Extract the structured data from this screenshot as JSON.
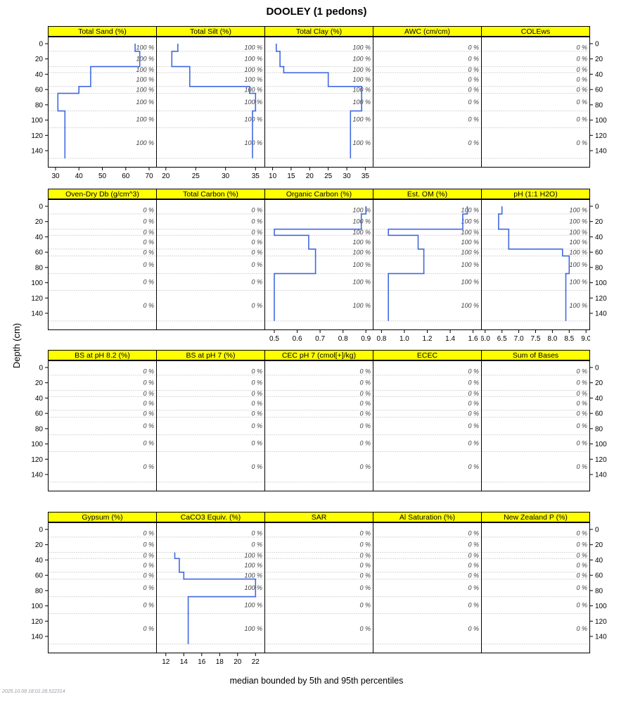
{
  "title": "DOOLEY (1 pedons)",
  "y_axis_label": "Depth (cm)",
  "footer": "median bounded by 5th and 95th percentiles",
  "timestamp": "2025.10.08 18:01:28.522314",
  "colors": {
    "strip_bg": "#ffff00",
    "strip_border": "#000000",
    "line": "#4169e1",
    "pct_text": "#404040",
    "grid": "#b0b0b0"
  },
  "chart_data": {
    "type": "line",
    "description": "Soil property depth-profile step lines for pedon DOOLEY; 4 rows x 5 property panels; blue line is median value by depth; italic labels give percent of pedons contributing data per horizon",
    "depth_axis_label": "Depth (cm)",
    "depth_ticks": [
      0,
      20,
      40,
      60,
      80,
      100,
      120,
      140
    ],
    "depth_range": [
      0,
      150
    ],
    "horizon_boundaries_cm": [
      0,
      10,
      30,
      38,
      56,
      65,
      88,
      110,
      150
    ],
    "rows": [
      {
        "panels": [
          {
            "title": "Total Sand (%)",
            "xlim": [
              27,
              73
            ],
            "tick_values": [
              30,
              40,
              50,
              60,
              70
            ],
            "tick_labels": [
              "30",
              "40",
              "50",
              "60",
              "70"
            ],
            "values": [
              64,
              66,
              45,
              45,
              40,
              31,
              34,
              34
            ],
            "pct": [
              "100 %",
              "100 %",
              "100 %",
              "100 %",
              "100 %",
              "100 %",
              "100 %",
              "100 %"
            ]
          },
          {
            "title": "Total Silt (%)",
            "xlim": [
              18.5,
              36.5
            ],
            "tick_values": [
              20,
              25,
              30,
              35
            ],
            "tick_labels": [
              "20",
              "25",
              "30",
              "35"
            ],
            "values": [
              22,
              21,
              24,
              24,
              34,
              35,
              34.5,
              34.5
            ],
            "pct": [
              "100 %",
              "100 %",
              "100 %",
              "100 %",
              "100 %",
              "100 %",
              "100 %",
              "100 %"
            ]
          },
          {
            "title": "Total Clay (%)",
            "xlim": [
              8,
              37
            ],
            "tick_values": [
              10,
              15,
              20,
              25,
              30,
              35
            ],
            "tick_labels": [
              "10",
              "15",
              "20",
              "25",
              "30",
              "35"
            ],
            "values": [
              11,
              12,
              13,
              25,
              34,
              34,
              31,
              31
            ],
            "pct": [
              "100 %",
              "100 %",
              "100 %",
              "100 %",
              "100 %",
              "100 %",
              "100 %",
              "100 %"
            ]
          },
          {
            "title": "AWC (cm/cm)",
            "xlim": null,
            "tick_values": [],
            "tick_labels": [],
            "values": null,
            "pct": [
              "0 %",
              "0 %",
              "0 %",
              "0 %",
              "0 %",
              "0 %",
              "0 %",
              "0 %"
            ]
          },
          {
            "title": "COLEws",
            "xlim": null,
            "tick_values": [],
            "tick_labels": [],
            "values": null,
            "pct": [
              "0 %",
              "0 %",
              "0 %",
              "0 %",
              "0 %",
              "0 %",
              "0 %",
              "0 %"
            ]
          }
        ]
      },
      {
        "panels": [
          {
            "title": "Oven-Dry Db (g/cm^3)",
            "xlim": null,
            "tick_values": [],
            "tick_labels": [],
            "values": null,
            "pct": [
              "0 %",
              "0 %",
              "0 %",
              "0 %",
              "0 %",
              "0 %",
              "0 %",
              "0 %"
            ]
          },
          {
            "title": "Total Carbon (%)",
            "xlim": null,
            "tick_values": [],
            "tick_labels": [],
            "values": null,
            "pct": [
              "0 %",
              "0 %",
              "0 %",
              "0 %",
              "0 %",
              "0 %",
              "0 %",
              "0 %"
            ]
          },
          {
            "title": "Organic Carbon (%)",
            "xlim": [
              0.46,
              0.93
            ],
            "tick_values": [
              0.5,
              0.6,
              0.7,
              0.8,
              0.9
            ],
            "tick_labels": [
              "0.5",
              "0.6",
              "0.7",
              "0.8",
              "0.9"
            ],
            "values": [
              0.9,
              0.88,
              0.5,
              0.65,
              0.68,
              0.68,
              0.5,
              0.5
            ],
            "pct": [
              "100 %",
              "100 %",
              "100 %",
              "100 %",
              "100 %",
              "100 %",
              "100 %",
              "100 %"
            ]
          },
          {
            "title": "Est. OM (%)",
            "xlim": [
              0.73,
              1.67
            ],
            "tick_values": [
              0.8,
              1.0,
              1.2,
              1.4,
              1.6
            ],
            "tick_labels": [
              "0.8",
              "1.0",
              "1.2",
              "1.4",
              "1.6"
            ],
            "values": [
              1.55,
              1.51,
              0.86,
              1.12,
              1.17,
              1.17,
              0.86,
              0.86
            ],
            "pct": [
              "100 %",
              "100 %",
              "100 %",
              "100 %",
              "100 %",
              "100 %",
              "100 %",
              "100 %"
            ]
          },
          {
            "title": "pH (1:1 H2O)",
            "xlim": [
              5.9,
              9.1
            ],
            "tick_values": [
              6.0,
              6.5,
              7.0,
              7.5,
              8.0,
              8.5,
              9.0
            ],
            "tick_labels": [
              "6.0",
              "6.5",
              "7.0",
              "7.5",
              "8.0",
              "8.5",
              "9.0"
            ],
            "values": [
              6.5,
              6.4,
              6.7,
              6.7,
              8.3,
              8.5,
              8.4,
              8.4
            ],
            "pct": [
              "100 %",
              "100 %",
              "100 %",
              "100 %",
              "100 %",
              "100 %",
              "100 %",
              "100 %"
            ]
          }
        ]
      },
      {
        "panels": [
          {
            "title": "BS at pH 8.2 (%)",
            "xlim": null,
            "tick_values": [],
            "tick_labels": [],
            "values": null,
            "pct": [
              "0 %",
              "0 %",
              "0 %",
              "0 %",
              "0 %",
              "0 %",
              "0 %",
              "0 %"
            ]
          },
          {
            "title": "BS at pH 7 (%)",
            "xlim": null,
            "tick_values": [],
            "tick_labels": [],
            "values": null,
            "pct": [
              "0 %",
              "0 %",
              "0 %",
              "0 %",
              "0 %",
              "0 %",
              "0 %",
              "0 %"
            ]
          },
          {
            "title": "CEC pH 7 (cmol[+]/kg)",
            "xlim": null,
            "tick_values": [],
            "tick_labels": [],
            "values": null,
            "pct": [
              "0 %",
              "0 %",
              "0 %",
              "0 %",
              "0 %",
              "0 %",
              "0 %",
              "0 %"
            ]
          },
          {
            "title": "ECEC",
            "xlim": null,
            "tick_values": [],
            "tick_labels": [],
            "values": null,
            "pct": [
              "0 %",
              "0 %",
              "0 %",
              "0 %",
              "0 %",
              "0 %",
              "0 %",
              "0 %"
            ]
          },
          {
            "title": "Sum of Bases",
            "xlim": null,
            "tick_values": [],
            "tick_labels": [],
            "values": null,
            "pct": [
              "0 %",
              "0 %",
              "0 %",
              "0 %",
              "0 %",
              "0 %",
              "0 %",
              "0 %"
            ]
          }
        ]
      },
      {
        "panels": [
          {
            "title": "Gypsum (%)",
            "xlim": null,
            "tick_values": [],
            "tick_labels": [],
            "values": null,
            "pct": [
              "0 %",
              "0 %",
              "0 %",
              "0 %",
              "0 %",
              "0 %",
              "0 %",
              "0 %"
            ]
          },
          {
            "title": "CaCO3 Equiv. (%)",
            "xlim": [
              11,
              23
            ],
            "tick_values": [
              12,
              14,
              16,
              18,
              20,
              22
            ],
            "tick_labels": [
              "12",
              "14",
              "16",
              "18",
              "20",
              "22"
            ],
            "values": [
              null,
              null,
              13,
              13.5,
              14,
              22,
              14.5,
              14.5
            ],
            "pct": [
              "0 %",
              "0 %",
              "100 %",
              "100 %",
              "100 %",
              "100 %",
              "100 %",
              "100 %"
            ]
          },
          {
            "title": "SAR",
            "xlim": null,
            "tick_values": [],
            "tick_labels": [],
            "values": null,
            "pct": [
              "0 %",
              "0 %",
              "0 %",
              "0 %",
              "0 %",
              "0 %",
              "0 %",
              "0 %"
            ]
          },
          {
            "title": "Al Saturation (%)",
            "xlim": null,
            "tick_values": [],
            "tick_labels": [],
            "values": null,
            "pct": [
              "0 %",
              "0 %",
              "0 %",
              "0 %",
              "0 %",
              "0 %",
              "0 %",
              "0 %"
            ]
          },
          {
            "title": "New Zealand P (%)",
            "xlim": null,
            "tick_values": [],
            "tick_labels": [],
            "values": null,
            "pct": [
              "0 %",
              "0 %",
              "0 %",
              "0 %",
              "0 %",
              "0 %",
              "0 %",
              "0 %"
            ]
          }
        ]
      }
    ]
  }
}
